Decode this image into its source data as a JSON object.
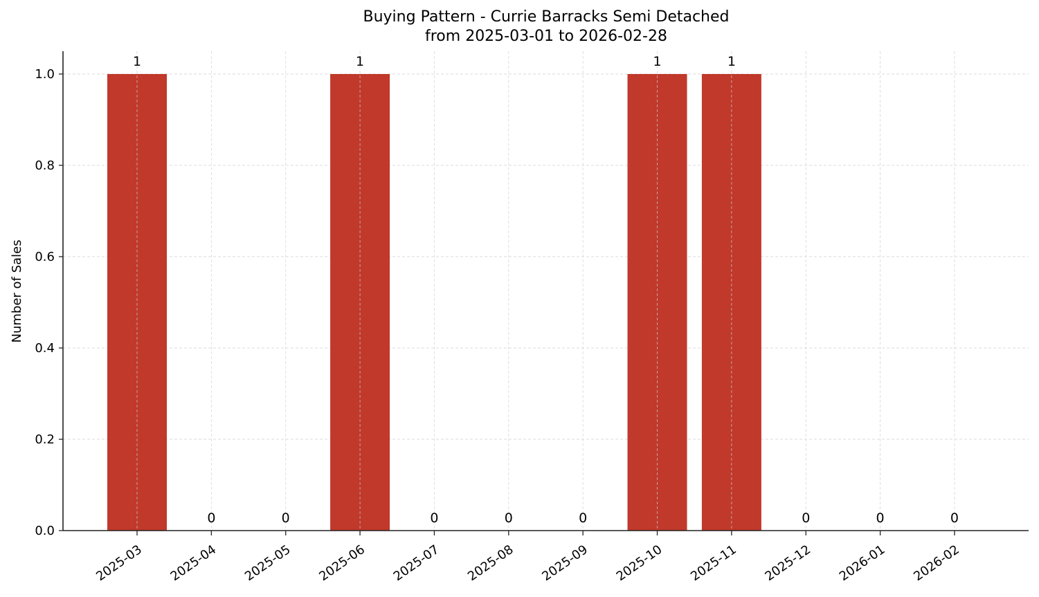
{
  "chart_data": {
    "type": "bar",
    "title": "Buying Pattern - Currie Barracks Semi Detached",
    "subtitle": "from 2025-03-01 to 2026-02-28",
    "xlabel": "",
    "ylabel": "Number of Sales",
    "categories": [
      "2025-03",
      "2025-04",
      "2025-05",
      "2025-06",
      "2025-07",
      "2025-08",
      "2025-09",
      "2025-10",
      "2025-11",
      "2025-12",
      "2026-01",
      "2026-02"
    ],
    "values": [
      1,
      0,
      0,
      1,
      0,
      0,
      0,
      1,
      1,
      0,
      0,
      0
    ],
    "ylim": [
      0,
      1.05
    ],
    "yticks": [
      "0.0",
      "0.2",
      "0.4",
      "0.6",
      "0.8",
      "1.0"
    ],
    "grid": true,
    "bar_color": "#c0392b",
    "data_labels": true,
    "legend": null
  }
}
